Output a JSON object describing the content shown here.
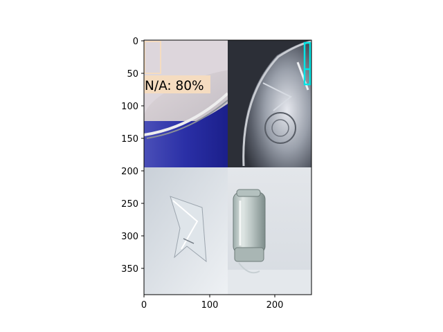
{
  "figure": {
    "x_ticks": [
      "0",
      "100",
      "200"
    ],
    "y_ticks": [
      "0",
      "50",
      "100",
      "150",
      "200",
      "250",
      "300",
      "350"
    ]
  },
  "image_grid": {
    "tiles": [
      {
        "subject": "metal-can-lid-on-blue-can"
      },
      {
        "subject": "crumpled-aluminum-foil-lid"
      },
      {
        "subject": "crumpled-clear-plastic-film"
      },
      {
        "subject": "upside-down-glass-jar"
      }
    ]
  },
  "detections": [
    {
      "label_text": "N/A: 80%",
      "box_color": "#f5dcc0"
    },
    {
      "label_text": "",
      "box_color": "#00e5e5"
    }
  ]
}
